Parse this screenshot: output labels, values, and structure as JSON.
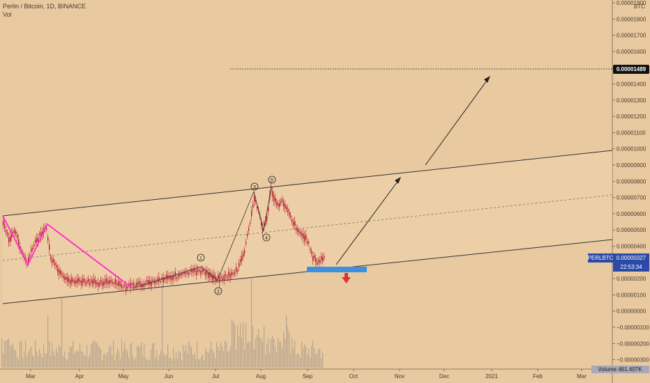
{
  "header": {
    "title": "Perlin / Bitcoin, 1D, BINANCE",
    "volume_label": "Vol"
  },
  "colors": {
    "background": "#e8c9a0",
    "candle": "#b5162e",
    "pattern_line": "#ff33cc",
    "channel_line": "#333333",
    "volume_bar": "#b8a58e",
    "support_box": "#3d8fe0",
    "down_arrow": "#e03040",
    "price_label_bg": "#2b4aa8",
    "target_label_bg": "#111111"
  },
  "price_axis": {
    "unit": "BTC",
    "ticks": [
      "0.00001900",
      "0.00001800",
      "0.00001700",
      "0.00001600",
      "0.00001500",
      "0.00001400",
      "0.00001300",
      "0.00001200",
      "0.00001100",
      "0.00001000",
      "0.00000900",
      "0.00000800",
      "0.00000700",
      "0.00000600",
      "0.00000500",
      "0.00000400",
      "0.00000300",
      "0.00000200",
      "0.00000100",
      "0.00000000",
      "−0.00000100",
      "−0.00000200",
      "−0.00000300"
    ],
    "target_price": "0.00001489",
    "symbol_label": "PERLBTC",
    "current_price": "0.00000327",
    "countdown": "22:53:34",
    "volume_label": "Volume 461.407K"
  },
  "time_axis": {
    "labels": [
      "Mar",
      "Apr",
      "May",
      "Jun",
      "Jul",
      "Aug",
      "Sep",
      "Oct",
      "Nov",
      "Dec",
      "2021",
      "Feb",
      "Mar"
    ]
  },
  "wave_labels": [
    "1",
    "2",
    "3",
    "4",
    "5"
  ],
  "chart_data": {
    "type": "candlestick",
    "symbol": "PERLBTC",
    "ylim": [
      -3e-06,
      1.9e-05
    ],
    "series_close_approx": [
      {
        "date": "2020-02-10",
        "close": 5.5e-06
      },
      {
        "date": "2020-02-20",
        "close": 4e-06
      },
      {
        "date": "2020-03-01",
        "close": 5.2e-06
      },
      {
        "date": "2020-03-15",
        "close": 3e-06
      },
      {
        "date": "2020-04-01",
        "close": 1.8e-06
      },
      {
        "date": "2020-05-01",
        "close": 1.4e-06
      },
      {
        "date": "2020-06-01",
        "close": 2.1e-06
      },
      {
        "date": "2020-06-22",
        "close": 2.8e-06
      },
      {
        "date": "2020-07-01",
        "close": 2e-06
      },
      {
        "date": "2020-07-25",
        "close": 7.2e-06
      },
      {
        "date": "2020-08-03",
        "close": 4.6e-06
      },
      {
        "date": "2020-08-08",
        "close": 7.5e-06
      },
      {
        "date": "2020-08-25",
        "close": 4.5e-06
      },
      {
        "date": "2020-09-07",
        "close": 2.6e-06
      },
      {
        "date": "2020-09-12",
        "close": 3.3e-06
      }
    ],
    "last_price": 3.27e-06,
    "target_price": 1.489e-05,
    "volume": 461407
  }
}
